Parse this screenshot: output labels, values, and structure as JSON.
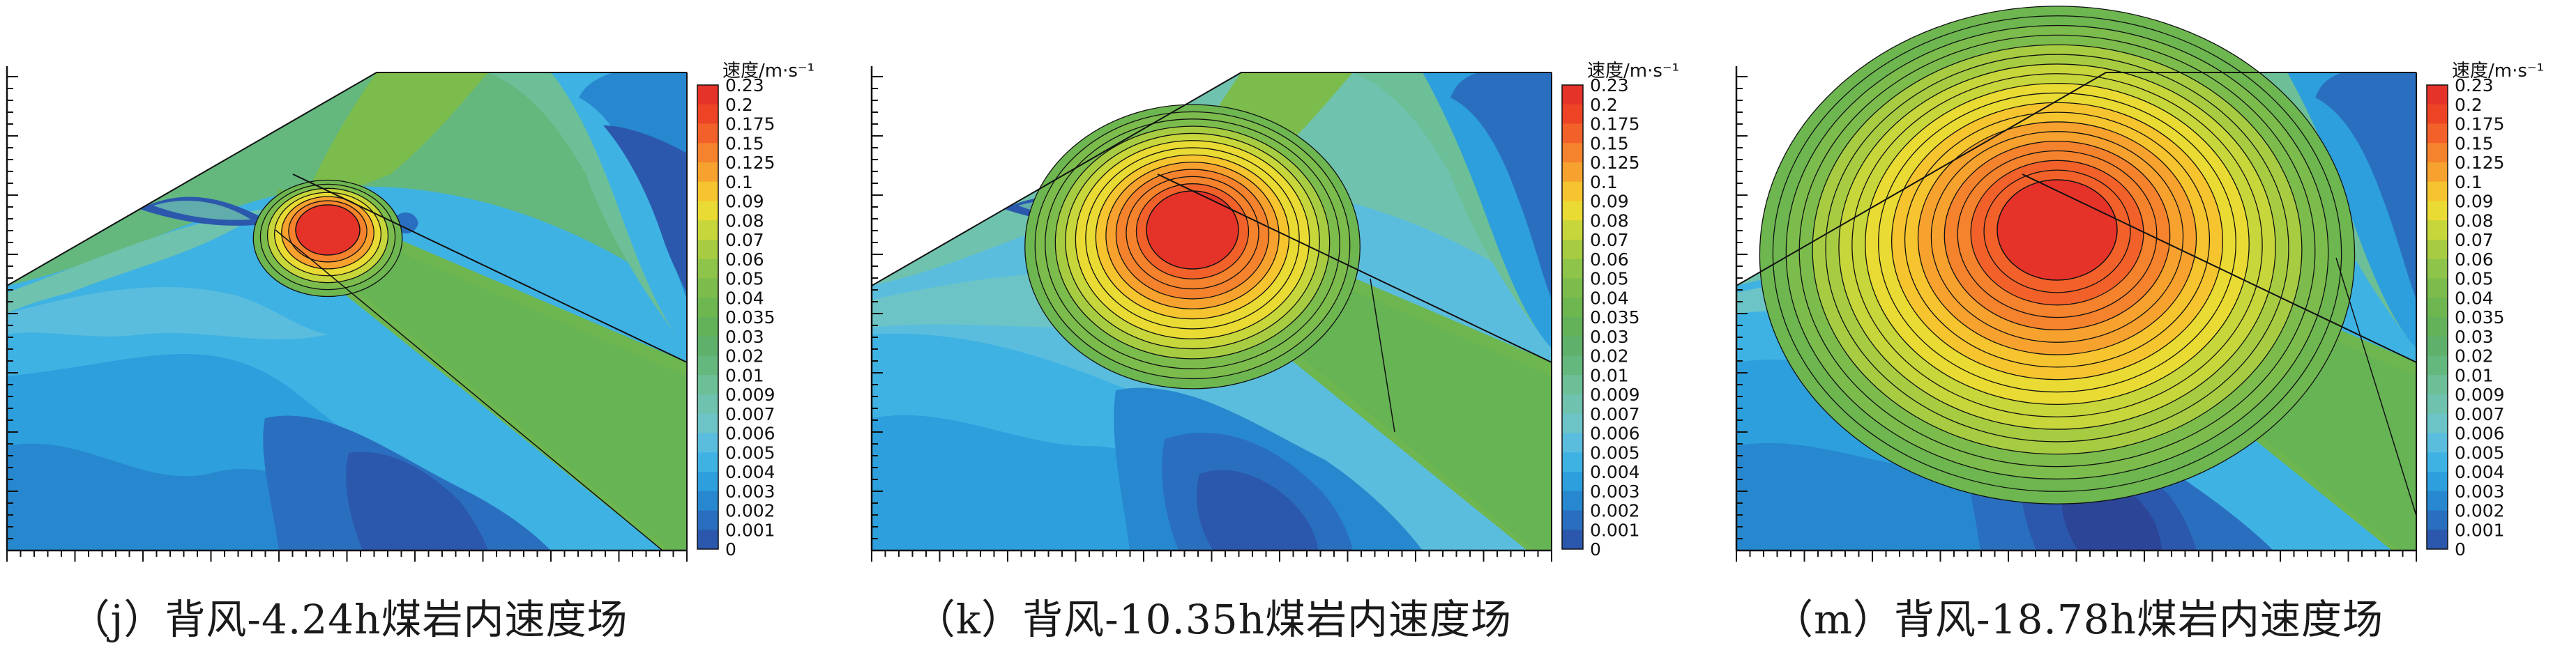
{
  "legend": {
    "title": "速度/m·s⁻¹",
    "levels": [
      "0.23",
      "0.2",
      "0.175",
      "0.15",
      "0.125",
      "0.1",
      "0.09",
      "0.08",
      "0.07",
      "0.06",
      "0.05",
      "0.04",
      "0.035",
      "0.03",
      "0.02",
      "0.01",
      "0.009",
      "0.007",
      "0.006",
      "0.005",
      "0.004",
      "0.003",
      "0.002",
      "0.001",
      "0"
    ],
    "colors": [
      "#e63329",
      "#ee4426",
      "#f2612a",
      "#f5822c",
      "#f7a22e",
      "#f6c42f",
      "#e9db33",
      "#c7d63a",
      "#a7cc42",
      "#8ec44a",
      "#7cbc4c",
      "#6db650",
      "#63b25a",
      "#5fb06a",
      "#64b87e",
      "#6cbf96",
      "#6fc2ae",
      "#6cc4c6",
      "#5bbddd",
      "#3fb2e4",
      "#2d9fdc",
      "#2788cf",
      "#2a6fbf",
      "#2b58ac",
      "#2c4596"
    ]
  },
  "panels": [
    {
      "caption": "（j）背风-4.24h煤岩内速度场",
      "hot_rx": 46,
      "hot_ry": 36,
      "rings": 6
    },
    {
      "caption": "（k）背风-10.35h煤岩内速度场",
      "hot_rx": 66,
      "hot_ry": 56,
      "rings": 12
    },
    {
      "caption": "（m）背风-18.78h煤岩内速度场",
      "hot_rx": 86,
      "hot_ry": 72,
      "rings": 18
    }
  ]
}
